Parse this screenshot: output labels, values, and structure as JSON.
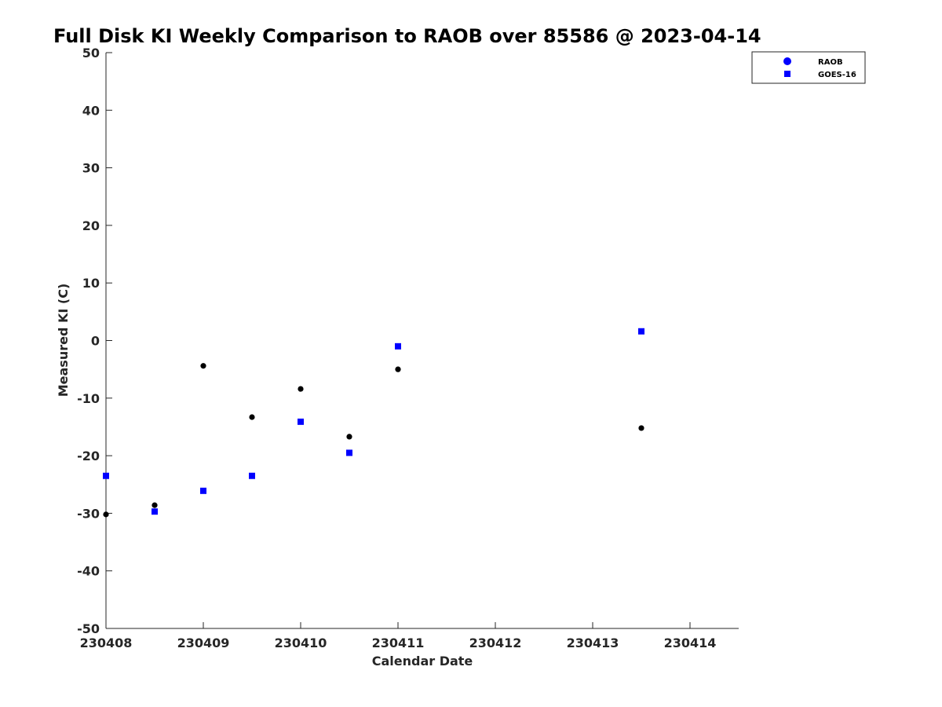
{
  "chart_data": {
    "type": "scatter",
    "title": "Full Disk KI Weekly Comparison to RAOB over 85586 @ 2023-04-14",
    "xlabel": "Calendar Date",
    "ylabel": "Measured KI (C)",
    "x_ticks": [
      {
        "value": 230408,
        "label": "230408"
      },
      {
        "value": 230409,
        "label": "230409"
      },
      {
        "value": 230410,
        "label": "230410"
      },
      {
        "value": 230411,
        "label": "230411"
      },
      {
        "value": 230412,
        "label": "230412"
      },
      {
        "value": 230413,
        "label": "230413"
      },
      {
        "value": 230414,
        "label": "230414"
      }
    ],
    "y_ticks": [
      {
        "value": 50,
        "label": "50"
      },
      {
        "value": 40,
        "label": "40"
      },
      {
        "value": 30,
        "label": "30"
      },
      {
        "value": 20,
        "label": "20"
      },
      {
        "value": 10,
        "label": "10"
      },
      {
        "value": 0,
        "label": "0"
      },
      {
        "value": -10,
        "label": "-10"
      },
      {
        "value": -20,
        "label": "-20"
      },
      {
        "value": -30,
        "label": "-30"
      },
      {
        "value": -40,
        "label": "-40"
      },
      {
        "value": -50,
        "label": "-50"
      }
    ],
    "xlim": [
      230408,
      230414.5
    ],
    "ylim": [
      -50,
      50
    ],
    "grid": false,
    "legend_position": "top-right",
    "series": [
      {
        "name": "RAOB",
        "marker": "circle",
        "legend_color": "#0000ff",
        "color": "#000000",
        "points": [
          {
            "x": 230408.0,
            "y": -30.2
          },
          {
            "x": 230408.5,
            "y": -28.6
          },
          {
            "x": 230409.0,
            "y": -4.4
          },
          {
            "x": 230409.5,
            "y": -13.3
          },
          {
            "x": 230410.0,
            "y": -8.4
          },
          {
            "x": 230410.5,
            "y": -16.7
          },
          {
            "x": 230411.0,
            "y": -5.0
          },
          {
            "x": 230413.5,
            "y": -15.2
          }
        ]
      },
      {
        "name": "GOES-16",
        "marker": "square",
        "legend_color": "#0000ff",
        "color": "#0000ff",
        "points": [
          {
            "x": 230408.0,
            "y": -23.5
          },
          {
            "x": 230408.5,
            "y": -29.7
          },
          {
            "x": 230409.0,
            "y": -26.1
          },
          {
            "x": 230409.5,
            "y": -23.5
          },
          {
            "x": 230410.0,
            "y": -14.1
          },
          {
            "x": 230410.5,
            "y": -19.5
          },
          {
            "x": 230411.0,
            "y": -1.0
          },
          {
            "x": 230413.5,
            "y": 1.6
          }
        ]
      }
    ]
  }
}
